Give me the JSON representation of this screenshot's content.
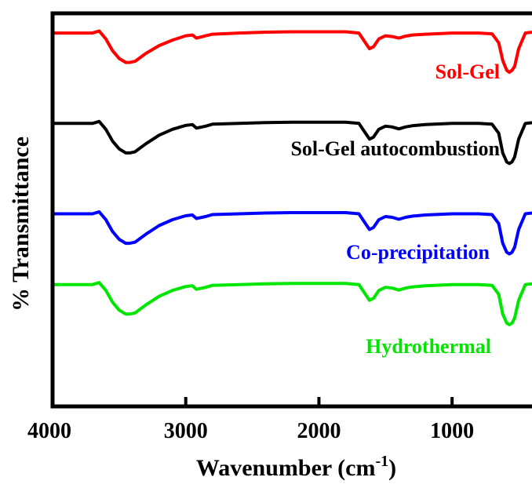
{
  "chart_data": {
    "type": "line",
    "xlabel": "Wavenumber (cm",
    "xlabel_sup": "-1",
    "xlabel_close": ")",
    "ylabel": "% Transmittance",
    "xlim": [
      4000,
      400
    ],
    "x_reversed": true,
    "xticks": [
      4000,
      3000,
      2000,
      1000
    ],
    "xtick_labels": [
      "4000",
      "3000",
      "2000",
      "1000"
    ],
    "ylim": [
      0,
      100
    ],
    "y_ticks_shown": false,
    "grid": false,
    "legend": "inline labels",
    "x": [
      4000,
      3800,
      3700,
      3650,
      3600,
      3550,
      3500,
      3450,
      3420,
      3380,
      3300,
      3200,
      3100,
      3000,
      2950,
      2920,
      2850,
      2800,
      2600,
      2400,
      2200,
      2000,
      1800,
      1700,
      1650,
      1620,
      1590,
      1550,
      1500,
      1450,
      1400,
      1380,
      1350,
      1300,
      1200,
      1000,
      900,
      800,
      700,
      650,
      620,
      590,
      570,
      550,
      530,
      500,
      450,
      400
    ],
    "series": [
      {
        "name": "Sol-Gel",
        "color": "#ff0000",
        "values": [
          95,
          95,
          95,
          95.5,
          93.5,
          90.5,
          88.5,
          87.5,
          87.5,
          87.8,
          89.8,
          91.8,
          93.2,
          94.3,
          94.5,
          93.7,
          94.3,
          94.7,
          95,
          95.2,
          95.3,
          95.3,
          95.3,
          95,
          92.5,
          91,
          91.5,
          93.5,
          94.3,
          94.1,
          93.7,
          93.9,
          94.2,
          94.5,
          94.7,
          95,
          95,
          95,
          94.8,
          92.5,
          88,
          85.5,
          85,
          85.5,
          86.5,
          91,
          95,
          95.2
        ]
      },
      {
        "name": "Sol-Gel autocombustion",
        "color": "#000000",
        "values": [
          72,
          72,
          72,
          72.5,
          70.5,
          67.5,
          65.5,
          64.5,
          64.5,
          64.8,
          66.8,
          69,
          70.5,
          71.5,
          71.7,
          70.8,
          71.3,
          71.8,
          72,
          72.2,
          72.3,
          72.3,
          72.3,
          72,
          69.5,
          68,
          68.5,
          70.5,
          71.3,
          71.1,
          70.6,
          70.8,
          71.1,
          71.4,
          71.7,
          72,
          72,
          72,
          71.8,
          69.5,
          64.5,
          62.2,
          61.8,
          62.2,
          63.5,
          68,
          72,
          72.2
        ]
      },
      {
        "name": "Co-precipitation",
        "color": "#0000ff",
        "values": [
          49,
          49,
          49,
          49.5,
          47.5,
          44.5,
          42.5,
          41.5,
          41.5,
          41.8,
          43.8,
          46,
          47.5,
          48.5,
          48.7,
          47.8,
          48.3,
          48.8,
          49,
          49.2,
          49.3,
          49.3,
          49.3,
          49,
          46.5,
          45,
          45.5,
          47.5,
          48.3,
          48.1,
          47.6,
          47.8,
          48.1,
          48.4,
          48.7,
          49,
          49,
          49,
          48.8,
          46.5,
          41.5,
          39.2,
          38.8,
          39.2,
          40.5,
          45,
          49,
          49.2
        ]
      },
      {
        "name": "Hydrothermal",
        "color": "#00e600",
        "values": [
          31,
          31,
          31,
          31.5,
          29.5,
          26.5,
          24.5,
          23.5,
          23.5,
          23.8,
          25.8,
          28,
          29.5,
          30.5,
          30.7,
          29.8,
          30.3,
          30.8,
          31,
          31.2,
          31.3,
          31.3,
          31.3,
          31,
          28.5,
          27,
          27.5,
          29.5,
          30.3,
          30.1,
          29.6,
          29.8,
          30.1,
          30.4,
          30.7,
          31,
          31,
          31,
          30.8,
          28.5,
          23.5,
          21.2,
          20.8,
          21.2,
          22.5,
          27,
          31,
          31.2
        ]
      }
    ]
  }
}
